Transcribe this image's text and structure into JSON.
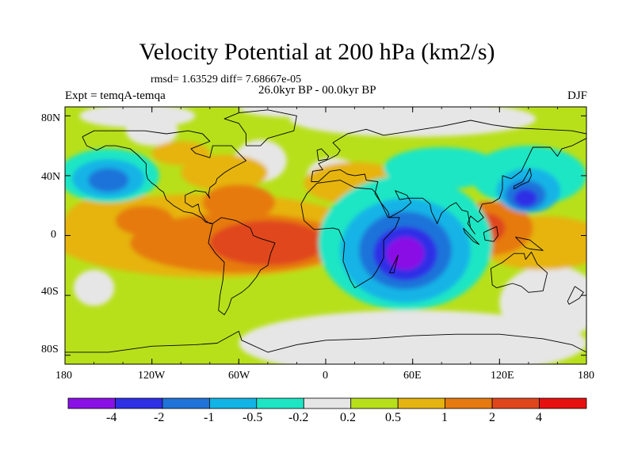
{
  "title": "Velocity Potential at 200 hPa (km2/s)",
  "stats_line": "rmsd= 1.63529 diff= 7.68667e-05",
  "period": "26.0kyr BP - 00.0kyr BP",
  "experiment": "Expt = temqA-temqa",
  "season": "DJF",
  "lat_labels": [
    "80N",
    "40N",
    "0",
    "40S",
    "80S"
  ],
  "lon_labels": [
    "180",
    "120W",
    "60W",
    "0",
    "60E",
    "120E",
    "180"
  ],
  "colorbar": {
    "colors": [
      "#8a11e6",
      "#2f2fe6",
      "#1f73d9",
      "#12b4e6",
      "#1ee6c4",
      "#e6e6e6",
      "#b8e01a",
      "#e6b410",
      "#e67a10",
      "#e0461c",
      "#e61010"
    ],
    "labels": [
      "-4",
      "-2",
      "-1",
      "-0.5",
      "-0.2",
      "0.2",
      "0.5",
      "1",
      "2",
      "4"
    ]
  },
  "chart_data": {
    "type": "heatmap",
    "variable": "Velocity Potential at 200 hPa",
    "units": "km2/s",
    "lon_range": [
      -180,
      180
    ],
    "lat_range": [
      -90,
      90
    ],
    "contour_levels": [
      -4,
      -2,
      -1,
      -0.5,
      -0.2,
      0.2,
      0.5,
      1,
      2,
      4
    ],
    "features": [
      {
        "region": "southern Africa / western Indian Ocean",
        "lon": 55,
        "lat": -10,
        "value": -5
      },
      {
        "region": "western Pacific near Japan",
        "lon": 138,
        "lat": 25,
        "value": -2.5
      },
      {
        "region": "North Pacific",
        "lon": -150,
        "lat": 35,
        "value": -1.5
      },
      {
        "region": "Maritime Continent",
        "lon": 110,
        "lat": 5,
        "value": 2.5
      },
      {
        "region": "tropical Atlantic / South America",
        "lon": -40,
        "lat": -2,
        "value": 2.5
      },
      {
        "region": "eastern Pacific",
        "lon": -120,
        "lat": 10,
        "value": 1.5
      },
      {
        "region": "Caribbean",
        "lon": -60,
        "lat": 25,
        "value": 1.5
      },
      {
        "region": "eastern Mediterranean",
        "lon": 15,
        "lat": 40,
        "value": 1
      },
      {
        "region": "North America",
        "lon": -110,
        "lat": 50,
        "value": 0.4
      },
      {
        "region": "Arctic Eurasia",
        "lon": 60,
        "lat": 75,
        "value": 0.3
      }
    ],
    "grid": false,
    "colorbar_position": "bottom"
  }
}
